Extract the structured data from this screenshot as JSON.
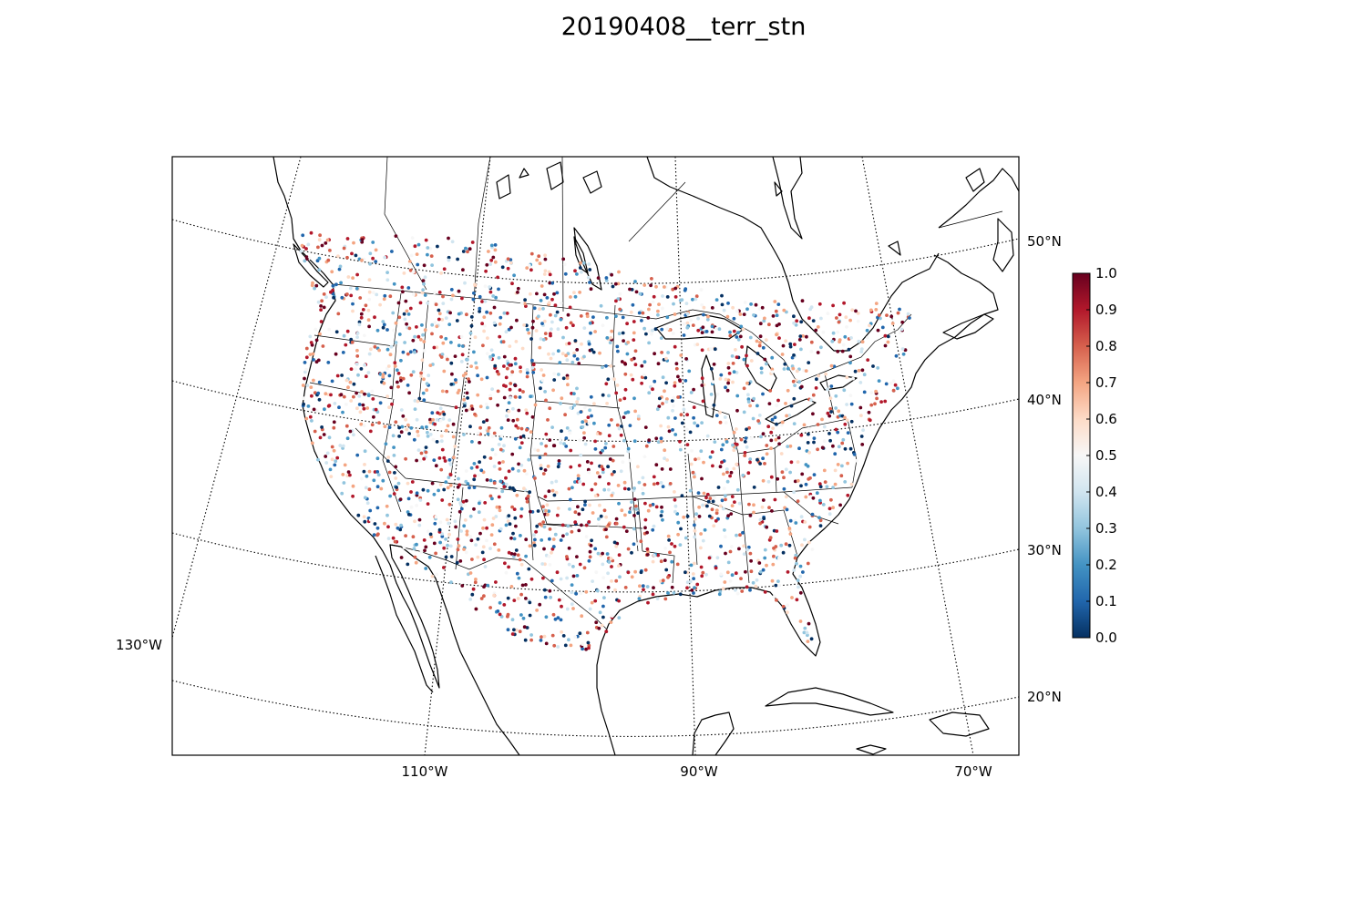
{
  "title": "20190408__terr_stn",
  "map": {
    "projection": "lambert-conformal-conic",
    "extent": {
      "lon_min": -130,
      "lon_max": -60,
      "lat_min": 18,
      "lat_max": 55
    },
    "parallel_labels": [
      "50°N",
      "40°N",
      "30°N",
      "20°N"
    ],
    "meridian_labels": [
      "110°W",
      "90°W",
      "70°W"
    ],
    "left_meridian_label": "130°W",
    "gridline_style": "dotted",
    "marker": "station-dot"
  },
  "colorbar": {
    "colormap": "RdBu_r",
    "min": 0.0,
    "max": 1.0,
    "ticks": [
      "0.0",
      "0.1",
      "0.2",
      "0.3",
      "0.4",
      "0.5",
      "0.6",
      "0.7",
      "0.8",
      "0.9",
      "1.0"
    ],
    "colors": [
      "#053061",
      "#2166ac",
      "#4393c3",
      "#92c5de",
      "#d1e5f0",
      "#f7f7f7",
      "#fddbc7",
      "#f4a582",
      "#d6604d",
      "#b2182b",
      "#67001f"
    ]
  }
}
